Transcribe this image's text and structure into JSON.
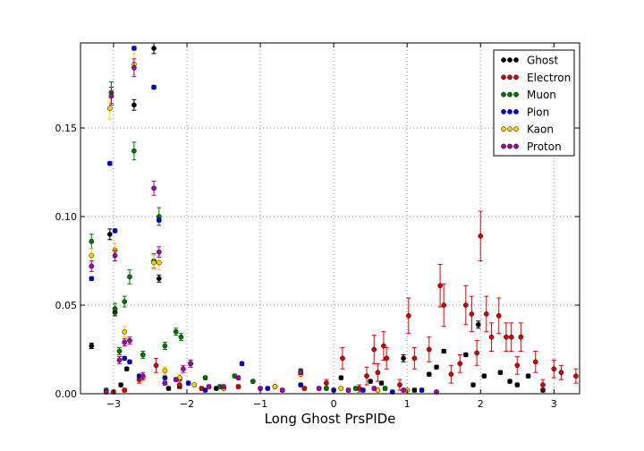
{
  "chart_data": {
    "type": "scatter",
    "title": "",
    "xlabel": "Long Ghost PrsPIDe",
    "ylabel": "",
    "xlim": [
      -3.45,
      3.35
    ],
    "ylim": [
      0,
      0.198
    ],
    "xticks": [
      -3,
      -2,
      -1,
      0,
      1,
      2,
      3
    ],
    "xtick_labels": [
      "−3",
      "−2",
      "−1",
      "0",
      "1",
      "2",
      "3"
    ],
    "yticks": [
      0.0,
      0.05,
      0.1,
      0.15
    ],
    "ytick_labels": [
      "0.00",
      "0.05",
      "0.10",
      "0.15"
    ],
    "grid": true,
    "legend_position": "top-right",
    "series": [
      {
        "name": "Ghost",
        "color": "#000000",
        "points": [
          [
            -3.3,
            0.027,
            0.0015
          ],
          [
            -3.05,
            0.09,
            0.003
          ],
          [
            -2.98,
            0.046,
            0.002
          ],
          [
            -2.9,
            0.005,
            0.001
          ],
          [
            -2.82,
            0.014,
            0.001
          ],
          [
            -2.72,
            0.163,
            0.003
          ],
          [
            -2.45,
            0.195,
            0.003
          ],
          [
            -2.38,
            0.065,
            0.002
          ],
          [
            -2.25,
            0.003,
            0.001
          ],
          [
            -2.1,
            0.004,
            0.001
          ],
          [
            -1.6,
            0.003,
            0.001
          ],
          [
            0.1,
            0.009,
            0.001
          ],
          [
            0.5,
            0.007,
            0.001
          ],
          [
            0.65,
            0.006,
            0.001
          ],
          [
            0.95,
            0.02,
            0.002
          ],
          [
            1.1,
            0.002,
            0.001
          ],
          [
            1.3,
            0.011,
            0.001
          ],
          [
            1.4,
            0.015,
            0.001
          ],
          [
            1.5,
            0.024,
            0.001
          ],
          [
            1.8,
            0.022,
            0.001
          ],
          [
            1.9,
            0.005,
            0.001
          ],
          [
            1.97,
            0.039,
            0.002
          ],
          [
            2.05,
            0.01,
            0.001
          ],
          [
            2.27,
            0.012,
            0.001
          ],
          [
            2.4,
            0.007,
            0.001
          ],
          [
            2.5,
            0.005,
            0.001
          ],
          [
            2.65,
            0.01,
            0.001
          ],
          [
            2.85,
            0.002,
            0.001
          ]
        ]
      },
      {
        "name": "Electron",
        "color": "#dd0000",
        "points": [
          [
            -3.0,
            0.001,
            0.001
          ],
          [
            -2.85,
            0.002,
            0.001
          ],
          [
            -2.65,
            0.008,
            0.002
          ],
          [
            -2.42,
            0.016,
            0.004
          ],
          [
            -2.1,
            0.005,
            0.002
          ],
          [
            -1.8,
            0.003,
            0.001
          ],
          [
            -1.3,
            0.004,
            0.001
          ],
          [
            -0.4,
            0.003,
            0.001
          ],
          [
            -0.1,
            0.006,
            0.002
          ],
          [
            0.12,
            0.02,
            0.006
          ],
          [
            0.35,
            0.003,
            0.002
          ],
          [
            0.45,
            0.01,
            0.005
          ],
          [
            0.55,
            0.025,
            0.008
          ],
          [
            0.6,
            0.012,
            0.005
          ],
          [
            0.68,
            0.027,
            0.008
          ],
          [
            0.72,
            0.02,
            0.006
          ],
          [
            0.9,
            0.005,
            0.003
          ],
          [
            1.02,
            0.044,
            0.01
          ],
          [
            1.1,
            0.02,
            0.006
          ],
          [
            1.3,
            0.025,
            0.007
          ],
          [
            1.45,
            0.061,
            0.012
          ],
          [
            1.5,
            0.05,
            0.012
          ],
          [
            1.6,
            0.011,
            0.005
          ],
          [
            1.72,
            0.017,
            0.005
          ],
          [
            1.8,
            0.05,
            0.011
          ],
          [
            1.88,
            0.045,
            0.01
          ],
          [
            1.95,
            0.023,
            0.007
          ],
          [
            2.0,
            0.089,
            0.014
          ],
          [
            2.08,
            0.045,
            0.01
          ],
          [
            2.15,
            0.032,
            0.008
          ],
          [
            2.25,
            0.044,
            0.01
          ],
          [
            2.35,
            0.032,
            0.008
          ],
          [
            2.42,
            0.032,
            0.008
          ],
          [
            2.5,
            0.016,
            0.005
          ],
          [
            2.55,
            0.032,
            0.008
          ],
          [
            2.75,
            0.018,
            0.006
          ],
          [
            2.85,
            0.005,
            0.003
          ],
          [
            3.0,
            0.014,
            0.005
          ],
          [
            3.1,
            0.012,
            0.004
          ],
          [
            3.3,
            0.01,
            0.004
          ]
        ]
      },
      {
        "name": "Muon",
        "color": "#007700",
        "points": [
          [
            -3.3,
            0.086,
            0.004
          ],
          [
            -3.1,
            0.002,
            0.001
          ],
          [
            -3.03,
            0.17,
            0.006
          ],
          [
            -2.98,
            0.048,
            0.003
          ],
          [
            -2.92,
            0.024,
            0.002
          ],
          [
            -2.85,
            0.052,
            0.003
          ],
          [
            -2.78,
            0.066,
            0.004
          ],
          [
            -2.72,
            0.137,
            0.005
          ],
          [
            -2.6,
            0.022,
            0.002
          ],
          [
            -2.45,
            0.075,
            0.004
          ],
          [
            -2.38,
            0.1,
            0.005
          ],
          [
            -2.3,
            0.027,
            0.002
          ],
          [
            -2.15,
            0.035,
            0.002
          ],
          [
            -2.08,
            0.032,
            0.002
          ],
          [
            -1.95,
            0.017,
            0.002
          ],
          [
            -1.75,
            0.009,
            0.001
          ],
          [
            -1.55,
            0.004,
            0.001
          ],
          [
            -1.35,
            0.01,
            0.001
          ],
          [
            -1.1,
            0.007,
            0.001
          ],
          [
            -0.8,
            0.004,
            0.001
          ],
          [
            -0.45,
            0.013,
            0.001
          ],
          [
            -0.1,
            0.003,
            0.001
          ],
          [
            0.3,
            0.003,
            0.001
          ],
          [
            0.7,
            0.003,
            0.001
          ]
        ]
      },
      {
        "name": "Pion",
        "color": "#0000dd",
        "points": [
          [
            -3.3,
            0.065,
            0.001
          ],
          [
            -3.05,
            0.13,
            0.001
          ],
          [
            -2.98,
            0.092,
            0.001
          ],
          [
            -2.85,
            0.02,
            0.001
          ],
          [
            -2.78,
            0.018,
            0.001
          ],
          [
            -2.72,
            0.195,
            0.001
          ],
          [
            -2.65,
            0.01,
            0.001
          ],
          [
            -2.45,
            0.173,
            0.001
          ],
          [
            -2.38,
            0.098,
            0.001
          ],
          [
            -2.3,
            0.009,
            0.001
          ],
          [
            -2.1,
            0.008,
            0.001
          ],
          [
            -1.98,
            0.006,
            0.001
          ],
          [
            -1.75,
            0.002,
            0.001
          ],
          [
            -1.5,
            0.003,
            0.001
          ],
          [
            -1.25,
            0.017,
            0.001
          ],
          [
            -0.9,
            0.003,
            0.001
          ],
          [
            -0.45,
            0.005,
            0.001
          ],
          [
            0.0,
            0.002,
            0.001
          ],
          [
            0.4,
            0.002,
            0.001
          ],
          [
            0.8,
            0.001,
            0.001
          ],
          [
            1.2,
            0.002,
            0.001
          ]
        ]
      },
      {
        "name": "Kaon",
        "color": "#ffcc00",
        "points": [
          [
            -3.3,
            0.078,
            0.004
          ],
          [
            -3.05,
            0.161,
            0.006
          ],
          [
            -2.98,
            0.081,
            0.004
          ],
          [
            -2.85,
            0.035,
            0.003
          ],
          [
            -2.72,
            0.186,
            0.006
          ],
          [
            -2.6,
            0.009,
            0.002
          ],
          [
            -2.45,
            0.074,
            0.004
          ],
          [
            -2.38,
            0.074,
            0.004
          ],
          [
            -2.3,
            0.013,
            0.002
          ],
          [
            -2.1,
            0.009,
            0.002
          ],
          [
            -1.9,
            0.005,
            0.001
          ],
          [
            -1.5,
            0.003,
            0.001
          ],
          [
            -0.8,
            0.004,
            0.001
          ],
          [
            -0.45,
            0.011,
            0.002
          ],
          [
            0.1,
            0.003,
            0.001
          ],
          [
            0.6,
            0.002,
            0.001
          ],
          [
            1.0,
            0.002,
            0.001
          ]
        ]
      },
      {
        "name": "Proton",
        "color": "#aa00aa",
        "points": [
          [
            -3.3,
            0.072,
            0.003
          ],
          [
            -3.1,
            0.001,
            0.001
          ],
          [
            -3.03,
            0.168,
            0.005
          ],
          [
            -2.98,
            0.078,
            0.003
          ],
          [
            -2.92,
            0.019,
            0.002
          ],
          [
            -2.85,
            0.029,
            0.002
          ],
          [
            -2.78,
            0.03,
            0.002
          ],
          [
            -2.72,
            0.184,
            0.005
          ],
          [
            -2.6,
            0.01,
            0.002
          ],
          [
            -2.45,
            0.116,
            0.004
          ],
          [
            -2.38,
            0.08,
            0.003
          ],
          [
            -2.3,
            0.006,
            0.001
          ],
          [
            -2.15,
            0.008,
            0.001
          ],
          [
            -2.05,
            0.014,
            0.002
          ],
          [
            -1.95,
            0.017,
            0.002
          ],
          [
            -1.7,
            0.004,
            0.001
          ],
          [
            -1.5,
            0.004,
            0.001
          ],
          [
            -1.3,
            0.009,
            0.001
          ],
          [
            -1.0,
            0.003,
            0.001
          ],
          [
            -0.7,
            0.002,
            0.001
          ],
          [
            -0.45,
            0.012,
            0.001
          ],
          [
            -0.2,
            0.003,
            0.001
          ],
          [
            0.2,
            0.002,
            0.001
          ],
          [
            0.55,
            0.003,
            0.001
          ],
          [
            0.95,
            0.002,
            0.001
          ],
          [
            1.4,
            0.001,
            0.001
          ]
        ]
      }
    ]
  }
}
